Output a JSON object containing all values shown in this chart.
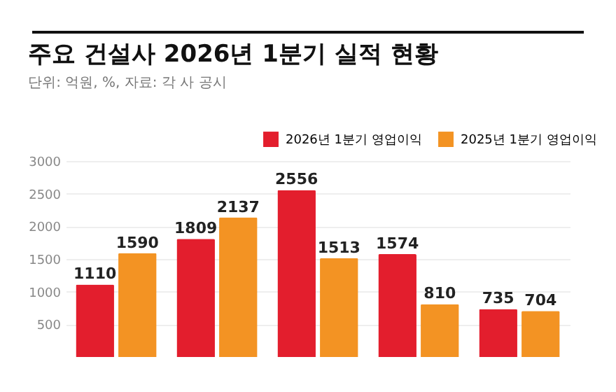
{
  "chart_data": {
    "type": "bar",
    "title": "주요 건설사 2026년 1분기 실적 현황",
    "subtitle": "단위: 억원, %, 자료: 각 사 공시",
    "categories": [
      null,
      null,
      null,
      null,
      null
    ],
    "series": [
      {
        "name": "2026년 1분기 영업이익",
        "color": "#e31e2d",
        "values": [
          1110,
          1809,
          2556,
          1574,
          735
        ]
      },
      {
        "name": "2025년 1분기 영업이익",
        "color": "#f39323",
        "values": [
          1590,
          2137,
          1513,
          810,
          704
        ]
      }
    ],
    "ylim": [
      0,
      3000
    ],
    "yticks": [
      500,
      1000,
      1500,
      2000,
      2500,
      3000
    ],
    "grid": "y",
    "legend": "top right",
    "data_labels": true,
    "tick_labels": "y"
  }
}
